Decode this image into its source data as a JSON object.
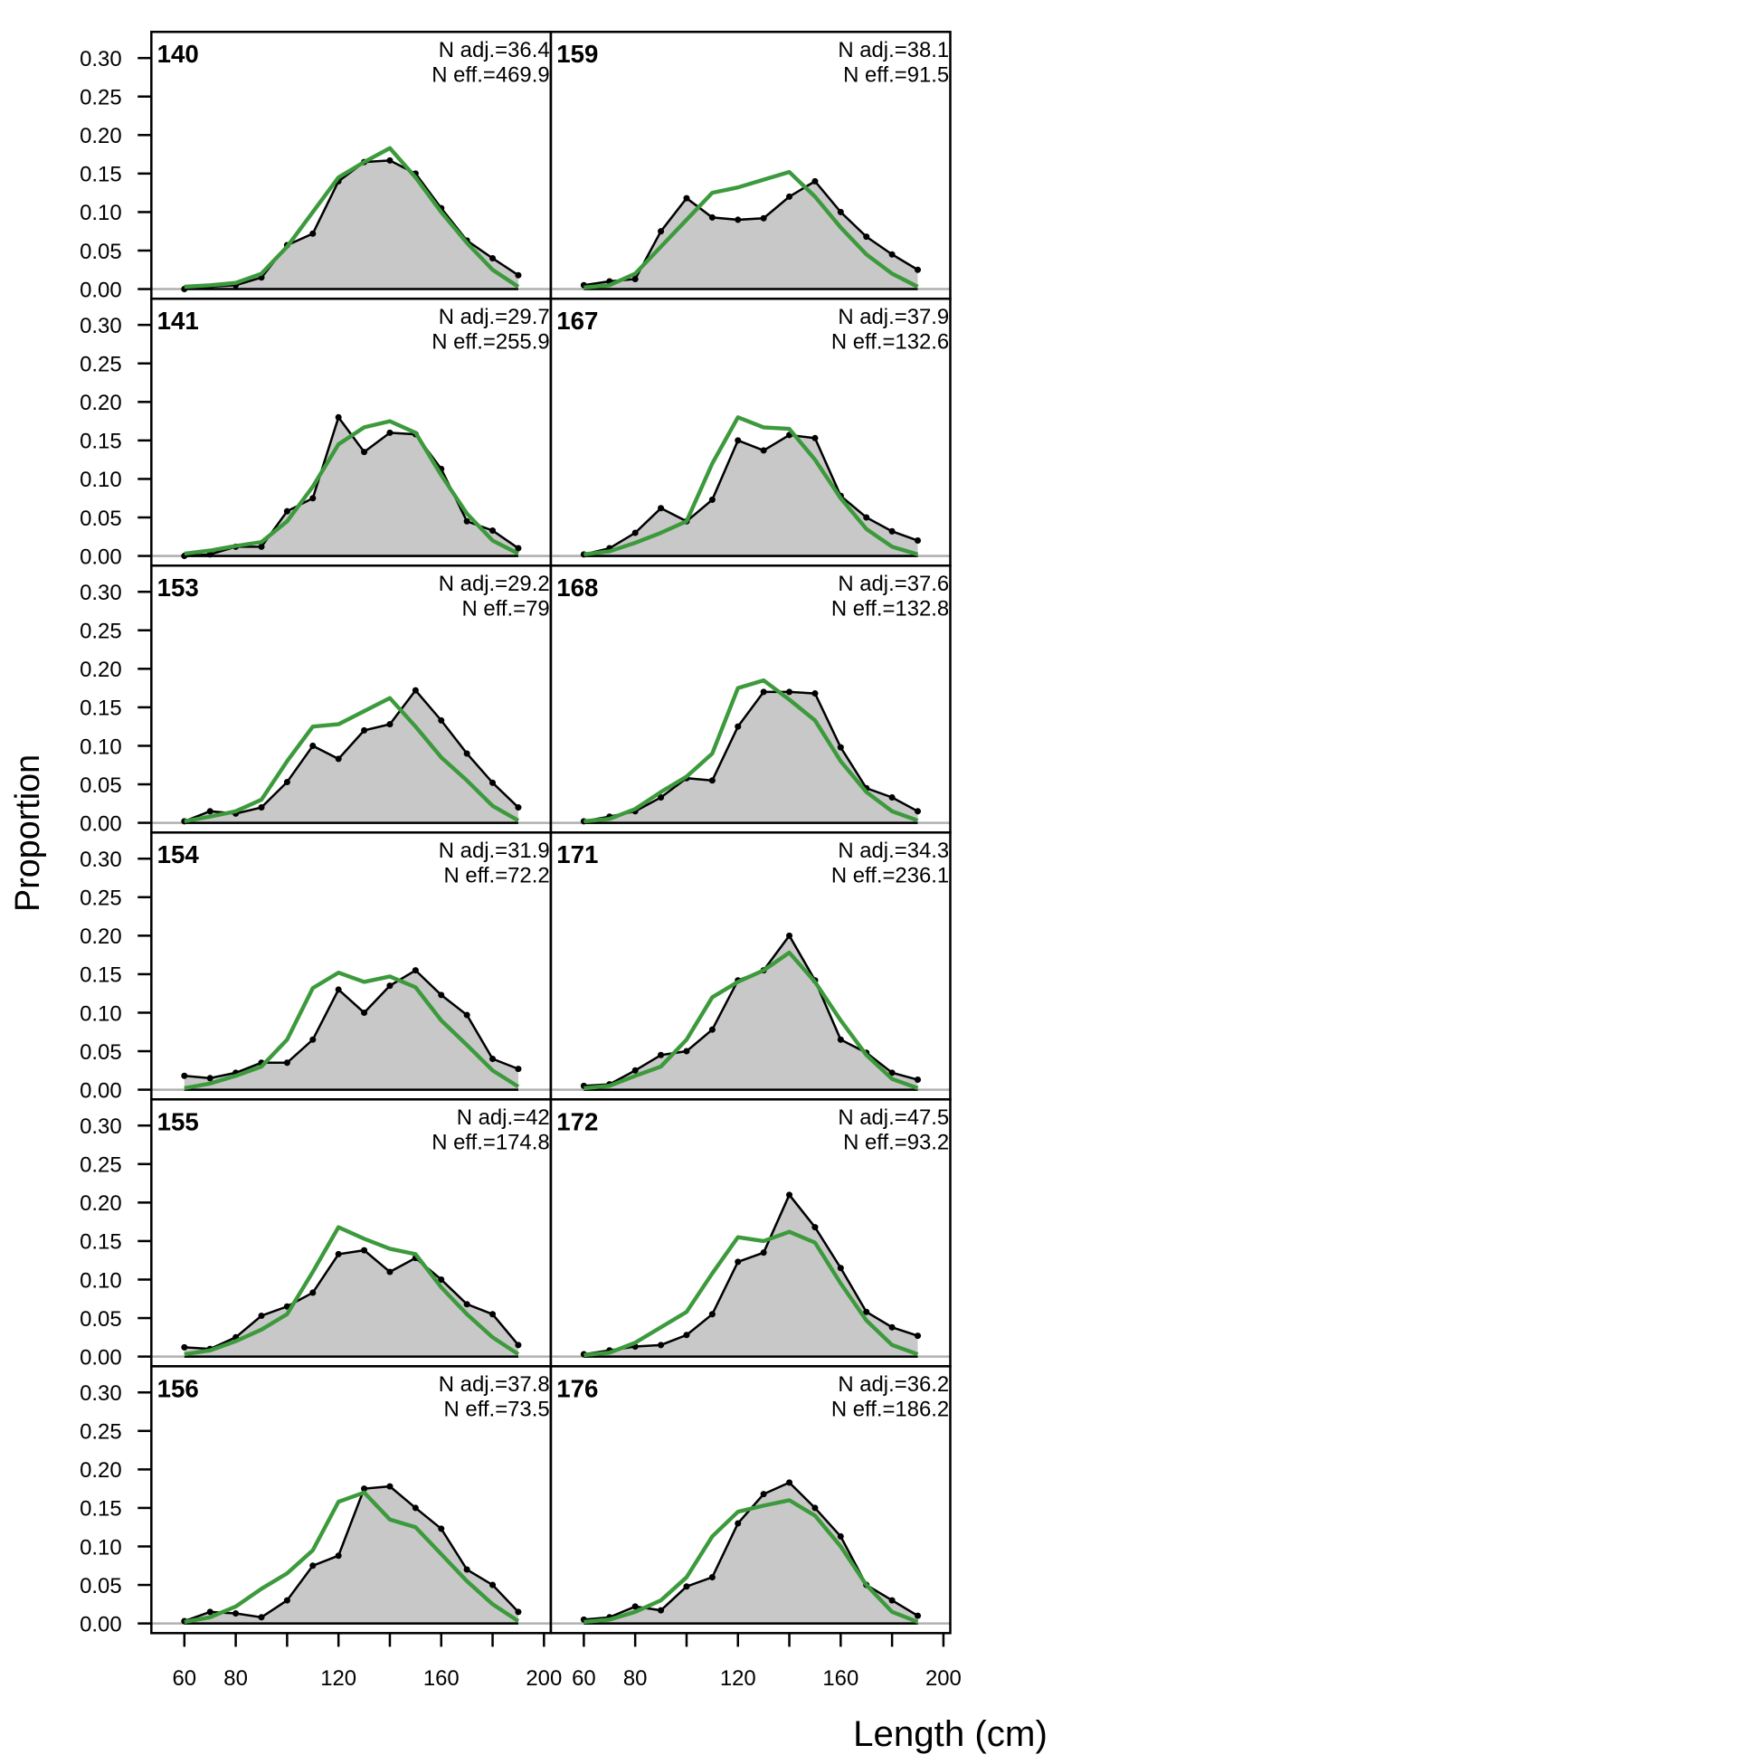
{
  "chart_data": {
    "type": "area",
    "xlabel": "Length (cm)",
    "ylabel": "Proportion",
    "xlim": [
      50,
      200
    ],
    "ylim": [
      0,
      0.3
    ],
    "x_ticks": [
      60,
      80,
      100,
      120,
      140,
      160,
      180,
      200
    ],
    "x_tick_labels": [
      "60",
      "80",
      "",
      "120",
      "",
      "160",
      "",
      "200"
    ],
    "y_ticks": [
      0,
      0.05,
      0.1,
      0.15,
      0.2,
      0.25,
      0.3
    ],
    "y_tick_labels": [
      "0.00",
      "0.05",
      "0.10",
      "0.15",
      "0.20",
      "0.25",
      "0.30"
    ],
    "x": [
      60,
      70,
      80,
      90,
      100,
      110,
      120,
      130,
      140,
      150,
      160,
      170,
      180,
      190
    ],
    "colors": {
      "observed_fill": "#c8c8c8",
      "observed_line": "#000000",
      "expected_line": "#3c9a3c",
      "zero_line": "#b0b0b0"
    },
    "series_names": [
      "observed",
      "expected"
    ],
    "panels": [
      {
        "label": "140",
        "n_adj": "N adj.=36.4",
        "n_eff": "N eff.=469.9",
        "observed": [
          0.0,
          0.003,
          0.005,
          0.015,
          0.057,
          0.072,
          0.14,
          0.165,
          0.167,
          0.15,
          0.105,
          0.063,
          0.04,
          0.018
        ],
        "expected": [
          0.003,
          0.005,
          0.008,
          0.02,
          0.055,
          0.1,
          0.145,
          0.165,
          0.183,
          0.145,
          0.1,
          0.06,
          0.025,
          0.003
        ]
      },
      {
        "label": "141",
        "n_adj": "N adj.=29.7",
        "n_eff": "N eff.=255.9",
        "observed": [
          0.0,
          0.002,
          0.012,
          0.012,
          0.058,
          0.075,
          0.18,
          0.135,
          0.16,
          0.158,
          0.113,
          0.045,
          0.033,
          0.01
        ],
        "expected": [
          0.003,
          0.007,
          0.013,
          0.018,
          0.045,
          0.09,
          0.145,
          0.167,
          0.175,
          0.16,
          0.105,
          0.055,
          0.02,
          0.003
        ]
      },
      {
        "label": "153",
        "n_adj": "N adj.=29.2",
        "n_eff": "N eff.=79",
        "observed": [
          0.002,
          0.015,
          0.012,
          0.02,
          0.053,
          0.1,
          0.083,
          0.12,
          0.128,
          0.172,
          0.133,
          0.09,
          0.052,
          0.02
        ],
        "expected": [
          0.002,
          0.008,
          0.015,
          0.03,
          0.08,
          0.125,
          0.128,
          0.145,
          0.162,
          0.125,
          0.085,
          0.055,
          0.022,
          0.003
        ]
      },
      {
        "label": "154",
        "n_adj": "N adj.=31.9",
        "n_eff": "N eff.=72.2",
        "observed": [
          0.018,
          0.015,
          0.022,
          0.035,
          0.035,
          0.065,
          0.13,
          0.1,
          0.135,
          0.155,
          0.123,
          0.097,
          0.04,
          0.027
        ],
        "expected": [
          0.002,
          0.008,
          0.018,
          0.03,
          0.065,
          0.132,
          0.152,
          0.14,
          0.147,
          0.133,
          0.09,
          0.058,
          0.025,
          0.004
        ]
      },
      {
        "label": "155",
        "n_adj": "N adj.=42",
        "n_eff": "N eff.=174.8",
        "observed": [
          0.012,
          0.01,
          0.025,
          0.053,
          0.065,
          0.083,
          0.133,
          0.138,
          0.11,
          0.128,
          0.1,
          0.068,
          0.055,
          0.015
        ],
        "expected": [
          0.003,
          0.008,
          0.02,
          0.035,
          0.055,
          0.11,
          0.168,
          0.153,
          0.14,
          0.133,
          0.09,
          0.055,
          0.025,
          0.003
        ]
      },
      {
        "label": "156",
        "n_adj": "N adj.=37.8",
        "n_eff": "N eff.=73.5",
        "observed": [
          0.003,
          0.015,
          0.013,
          0.008,
          0.03,
          0.075,
          0.088,
          0.175,
          0.178,
          0.15,
          0.123,
          0.07,
          0.05,
          0.015
        ],
        "expected": [
          0.002,
          0.008,
          0.022,
          0.045,
          0.065,
          0.095,
          0.158,
          0.17,
          0.135,
          0.125,
          0.09,
          0.055,
          0.025,
          0.003
        ]
      },
      {
        "label": "159",
        "n_adj": "N adj.=38.1",
        "n_eff": "N eff.=91.5",
        "observed": [
          0.005,
          0.01,
          0.013,
          0.075,
          0.118,
          0.093,
          0.09,
          0.092,
          0.12,
          0.14,
          0.1,
          0.068,
          0.045,
          0.025
        ],
        "expected": [
          0.002,
          0.005,
          0.02,
          0.055,
          0.09,
          0.125,
          0.132,
          0.142,
          0.152,
          0.12,
          0.08,
          0.045,
          0.02,
          0.003
        ]
      },
      {
        "label": "167",
        "n_adj": "N adj.=37.9",
        "n_eff": "N eff.=132.6",
        "observed": [
          0.002,
          0.01,
          0.03,
          0.062,
          0.045,
          0.073,
          0.15,
          0.137,
          0.157,
          0.153,
          0.078,
          0.05,
          0.032,
          0.02
        ],
        "expected": [
          0.002,
          0.006,
          0.017,
          0.03,
          0.045,
          0.12,
          0.18,
          0.167,
          0.165,
          0.125,
          0.075,
          0.035,
          0.012,
          0.002
        ]
      },
      {
        "label": "168",
        "n_adj": "N adj.=37.6",
        "n_eff": "N eff.=132.8",
        "observed": [
          0.002,
          0.008,
          0.015,
          0.033,
          0.058,
          0.055,
          0.125,
          0.17,
          0.17,
          0.168,
          0.098,
          0.045,
          0.033,
          0.015
        ],
        "expected": [
          0.002,
          0.005,
          0.018,
          0.04,
          0.06,
          0.09,
          0.175,
          0.185,
          0.16,
          0.133,
          0.08,
          0.04,
          0.015,
          0.003
        ]
      },
      {
        "label": "171",
        "n_adj": "N adj.=34.3",
        "n_eff": "N eff.=236.1",
        "observed": [
          0.005,
          0.007,
          0.025,
          0.045,
          0.05,
          0.078,
          0.142,
          0.155,
          0.2,
          0.142,
          0.065,
          0.048,
          0.022,
          0.013
        ],
        "expected": [
          0.002,
          0.005,
          0.018,
          0.03,
          0.065,
          0.12,
          0.14,
          0.155,
          0.178,
          0.14,
          0.09,
          0.045,
          0.014,
          0.002
        ]
      },
      {
        "label": "172",
        "n_adj": "N adj.=47.5",
        "n_eff": "N eff.=93.2",
        "observed": [
          0.003,
          0.008,
          0.013,
          0.015,
          0.028,
          0.055,
          0.123,
          0.135,
          0.21,
          0.168,
          0.115,
          0.058,
          0.038,
          0.027
        ],
        "expected": [
          0.002,
          0.005,
          0.018,
          0.038,
          0.058,
          0.108,
          0.155,
          0.15,
          0.162,
          0.148,
          0.095,
          0.047,
          0.015,
          0.003
        ]
      },
      {
        "label": "176",
        "n_adj": "N adj.=36.2",
        "n_eff": "N eff.=186.2",
        "observed": [
          0.005,
          0.008,
          0.022,
          0.017,
          0.048,
          0.06,
          0.13,
          0.168,
          0.183,
          0.15,
          0.113,
          0.05,
          0.03,
          0.01
        ],
        "expected": [
          0.002,
          0.005,
          0.015,
          0.03,
          0.06,
          0.113,
          0.145,
          0.153,
          0.16,
          0.14,
          0.1,
          0.05,
          0.015,
          0.002
        ]
      }
    ]
  }
}
